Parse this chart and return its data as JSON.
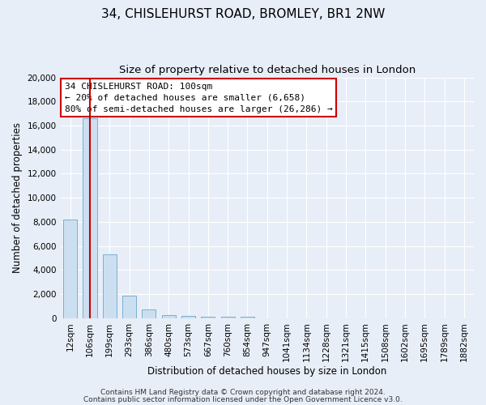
{
  "title": "34, CHISLEHURST ROAD, BROMLEY, BR1 2NW",
  "subtitle": "Size of property relative to detached houses in London",
  "xlabel": "Distribution of detached houses by size in London",
  "ylabel": "Number of detached properties",
  "bar_labels": [
    "12sqm",
    "106sqm",
    "199sqm",
    "293sqm",
    "386sqm",
    "480sqm",
    "573sqm",
    "667sqm",
    "760sqm",
    "854sqm",
    "947sqm",
    "1041sqm",
    "1134sqm",
    "1228sqm",
    "1321sqm",
    "1415sqm",
    "1508sqm",
    "1602sqm",
    "1695sqm",
    "1789sqm",
    "1882sqm"
  ],
  "bar_values": [
    8200,
    16600,
    5300,
    1850,
    750,
    270,
    200,
    150,
    130,
    100,
    0,
    0,
    0,
    0,
    0,
    0,
    0,
    0,
    0,
    0,
    0
  ],
  "bar_color": "#ccdff0",
  "bar_edge_color": "#7aafd0",
  "vline_x": 1,
  "vline_color": "#cc0000",
  "ylim": [
    0,
    20000
  ],
  "yticks": [
    0,
    2000,
    4000,
    6000,
    8000,
    10000,
    12000,
    14000,
    16000,
    18000,
    20000
  ],
  "annotation_text": "34 CHISLEHURST ROAD: 100sqm\n← 20% of detached houses are smaller (6,658)\n80% of semi-detached houses are larger (26,286) →",
  "annotation_box_color": "#ffffff",
  "annotation_box_edge_color": "#cc0000",
  "footer_line1": "Contains HM Land Registry data © Crown copyright and database right 2024.",
  "footer_line2": "Contains public sector information licensed under the Open Government Licence v3.0.",
  "background_color": "#e8eef8",
  "grid_color": "#ffffff",
  "title_fontsize": 11,
  "subtitle_fontsize": 9.5,
  "axis_label_fontsize": 8.5,
  "tick_fontsize": 7.5,
  "annotation_fontsize": 8,
  "footer_fontsize": 6.5
}
